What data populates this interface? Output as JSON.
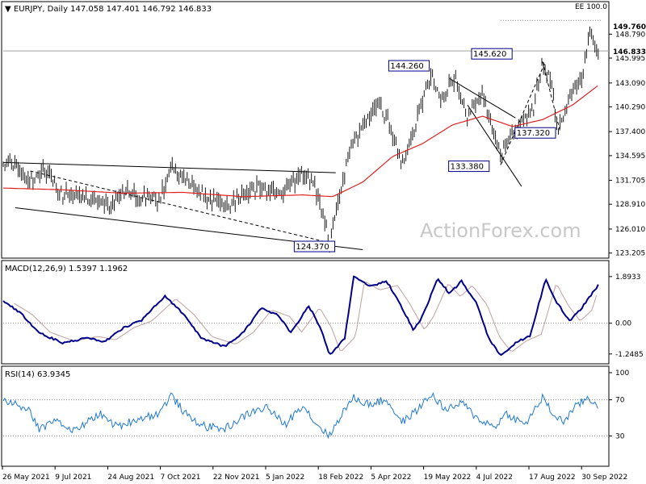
{
  "chart_data": [
    {
      "type": "candlestick",
      "header": "▼ EURJPY, Daily 147.058 147.401 146.792 146.833",
      "watermark": "ActionForex.com",
      "yticks": [
        123.205,
        126.01,
        128.91,
        131.705,
        134.595,
        137.4,
        140.29,
        143.09,
        145.995,
        148.79
      ],
      "ylim": [
        122.8,
        150.9
      ],
      "price_labels": {
        "last": "146.833",
        "high": "149.760",
        "ee": "EE 100.0"
      },
      "ma_color": "#e02020",
      "price_color": "#1a1a1a",
      "annotations": [
        "124.370",
        "144.260",
        "145.620",
        "137.320",
        "133.380"
      ],
      "waypoints": [
        {
          "x": 0.0,
          "y": 133.9
        },
        {
          "x": 0.02,
          "y": 133.6
        },
        {
          "x": 0.045,
          "y": 131.8
        },
        {
          "x": 0.07,
          "y": 132.8
        },
        {
          "x": 0.1,
          "y": 130.0
        },
        {
          "x": 0.13,
          "y": 129.8
        },
        {
          "x": 0.16,
          "y": 129.0
        },
        {
          "x": 0.18,
          "y": 128.6
        },
        {
          "x": 0.2,
          "y": 130.3
        },
        {
          "x": 0.23,
          "y": 129.8
        },
        {
          "x": 0.26,
          "y": 129.5
        },
        {
          "x": 0.28,
          "y": 133.2
        },
        {
          "x": 0.31,
          "y": 131.6
        },
        {
          "x": 0.34,
          "y": 129.6
        },
        {
          "x": 0.37,
          "y": 128.8
        },
        {
          "x": 0.4,
          "y": 129.7
        },
        {
          "x": 0.43,
          "y": 131.0
        },
        {
          "x": 0.46,
          "y": 130.0
        },
        {
          "x": 0.48,
          "y": 131.2
        },
        {
          "x": 0.5,
          "y": 132.6
        },
        {
          "x": 0.52,
          "y": 130.8
        },
        {
          "x": 0.535,
          "y": 127.8
        },
        {
          "x": 0.545,
          "y": 124.4
        },
        {
          "x": 0.56,
          "y": 129.5
        },
        {
          "x": 0.58,
          "y": 135.5
        },
        {
          "x": 0.6,
          "y": 137.8
        },
        {
          "x": 0.625,
          "y": 140.8
        },
        {
          "x": 0.645,
          "y": 138.2
        },
        {
          "x": 0.665,
          "y": 133.5
        },
        {
          "x": 0.685,
          "y": 137.5
        },
        {
          "x": 0.715,
          "y": 144.2
        },
        {
          "x": 0.73,
          "y": 140.8
        },
        {
          "x": 0.755,
          "y": 143.8
        },
        {
          "x": 0.775,
          "y": 139.0
        },
        {
          "x": 0.8,
          "y": 142.0
        },
        {
          "x": 0.83,
          "y": 134.5
        },
        {
          "x": 0.855,
          "y": 137.8
        },
        {
          "x": 0.885,
          "y": 140.0
        },
        {
          "x": 0.9,
          "y": 145.6
        },
        {
          "x": 0.915,
          "y": 143.0
        },
        {
          "x": 0.925,
          "y": 137.3
        },
        {
          "x": 0.945,
          "y": 141.6
        },
        {
          "x": 0.965,
          "y": 143.5
        },
        {
          "x": 0.98,
          "y": 149.0
        },
        {
          "x": 0.993,
          "y": 146.8
        }
      ],
      "ma_waypoints": [
        {
          "x": 0.0,
          "y": 130.8
        },
        {
          "x": 0.1,
          "y": 130.6
        },
        {
          "x": 0.2,
          "y": 130.2
        },
        {
          "x": 0.3,
          "y": 130.3
        },
        {
          "x": 0.4,
          "y": 129.8
        },
        {
          "x": 0.5,
          "y": 130.0
        },
        {
          "x": 0.55,
          "y": 129.8
        },
        {
          "x": 0.6,
          "y": 131.5
        },
        {
          "x": 0.65,
          "y": 134.5
        },
        {
          "x": 0.7,
          "y": 136.0
        },
        {
          "x": 0.75,
          "y": 138.2
        },
        {
          "x": 0.8,
          "y": 139.2
        },
        {
          "x": 0.85,
          "y": 138.0
        },
        {
          "x": 0.9,
          "y": 138.8
        },
        {
          "x": 0.95,
          "y": 140.5
        },
        {
          "x": 0.993,
          "y": 142.8
        }
      ]
    },
    {
      "type": "line",
      "title": "MACD(12,26,9) 1.5397 1.1962",
      "yticks": [
        1.8933,
        0.0,
        -1.2485
      ],
      "ylim": [
        -1.55,
        2.15
      ],
      "macd_color": "#00008b",
      "signal_color": "#c0a0a0",
      "waypoints": [
        {
          "x": 0.0,
          "y": 0.9
        },
        {
          "x": 0.03,
          "y": 0.4
        },
        {
          "x": 0.06,
          "y": -0.4
        },
        {
          "x": 0.1,
          "y": -0.8
        },
        {
          "x": 0.14,
          "y": -0.6
        },
        {
          "x": 0.17,
          "y": -0.75
        },
        {
          "x": 0.2,
          "y": -0.2
        },
        {
          "x": 0.23,
          "y": 0.1
        },
        {
          "x": 0.27,
          "y": 1.1
        },
        {
          "x": 0.3,
          "y": 0.4
        },
        {
          "x": 0.33,
          "y": -0.6
        },
        {
          "x": 0.37,
          "y": -0.95
        },
        {
          "x": 0.4,
          "y": -0.4
        },
        {
          "x": 0.43,
          "y": 0.6
        },
        {
          "x": 0.46,
          "y": 0.3
        },
        {
          "x": 0.48,
          "y": -0.4
        },
        {
          "x": 0.51,
          "y": 0.7
        },
        {
          "x": 0.53,
          "y": -0.2
        },
        {
          "x": 0.545,
          "y": -1.3
        },
        {
          "x": 0.57,
          "y": -0.6
        },
        {
          "x": 0.585,
          "y": 1.9
        },
        {
          "x": 0.61,
          "y": 1.5
        },
        {
          "x": 0.64,
          "y": 1.7
        },
        {
          "x": 0.66,
          "y": 0.9
        },
        {
          "x": 0.685,
          "y": -0.3
        },
        {
          "x": 0.7,
          "y": 0.3
        },
        {
          "x": 0.725,
          "y": 1.8
        },
        {
          "x": 0.745,
          "y": 1.2
        },
        {
          "x": 0.765,
          "y": 1.7
        },
        {
          "x": 0.79,
          "y": 0.8
        },
        {
          "x": 0.81,
          "y": -0.6
        },
        {
          "x": 0.83,
          "y": -1.3
        },
        {
          "x": 0.855,
          "y": -0.8
        },
        {
          "x": 0.88,
          "y": -0.5
        },
        {
          "x": 0.905,
          "y": 1.8
        },
        {
          "x": 0.925,
          "y": 0.8
        },
        {
          "x": 0.945,
          "y": 0.1
        },
        {
          "x": 0.965,
          "y": 0.6
        },
        {
          "x": 0.993,
          "y": 1.54
        }
      ]
    },
    {
      "type": "line",
      "title": "RSI(14) 63.9345",
      "yticks": [
        100,
        70,
        30
      ],
      "ylim": [
        0,
        100
      ],
      "rsi_color": "#1e78d2",
      "waypoints": [
        {
          "x": 0.0,
          "y": 70
        },
        {
          "x": 0.04,
          "y": 60
        },
        {
          "x": 0.06,
          "y": 38
        },
        {
          "x": 0.09,
          "y": 48
        },
        {
          "x": 0.12,
          "y": 35
        },
        {
          "x": 0.16,
          "y": 55
        },
        {
          "x": 0.19,
          "y": 40
        },
        {
          "x": 0.22,
          "y": 48
        },
        {
          "x": 0.26,
          "y": 55
        },
        {
          "x": 0.28,
          "y": 75
        },
        {
          "x": 0.31,
          "y": 50
        },
        {
          "x": 0.34,
          "y": 40
        },
        {
          "x": 0.37,
          "y": 38
        },
        {
          "x": 0.41,
          "y": 55
        },
        {
          "x": 0.44,
          "y": 62
        },
        {
          "x": 0.47,
          "y": 42
        },
        {
          "x": 0.5,
          "y": 65
        },
        {
          "x": 0.52,
          "y": 45
        },
        {
          "x": 0.545,
          "y": 30
        },
        {
          "x": 0.565,
          "y": 55
        },
        {
          "x": 0.585,
          "y": 72
        },
        {
          "x": 0.61,
          "y": 65
        },
        {
          "x": 0.64,
          "y": 70
        },
        {
          "x": 0.665,
          "y": 45
        },
        {
          "x": 0.685,
          "y": 55
        },
        {
          "x": 0.715,
          "y": 76
        },
        {
          "x": 0.74,
          "y": 58
        },
        {
          "x": 0.765,
          "y": 67
        },
        {
          "x": 0.79,
          "y": 50
        },
        {
          "x": 0.82,
          "y": 40
        },
        {
          "x": 0.84,
          "y": 55
        },
        {
          "x": 0.87,
          "y": 42
        },
        {
          "x": 0.9,
          "y": 72
        },
        {
          "x": 0.92,
          "y": 52
        },
        {
          "x": 0.935,
          "y": 46
        },
        {
          "x": 0.955,
          "y": 62
        },
        {
          "x": 0.975,
          "y": 72
        },
        {
          "x": 0.993,
          "y": 63.9
        }
      ]
    }
  ],
  "x_axis_labels": [
    "26 May 2021",
    "9 Jul 2021",
    "24 Aug 2021",
    "7 Oct 2021",
    "22 Nov 2021",
    "5 Jan 2022",
    "18 Feb 2022",
    "5 Apr 2022",
    "19 May 2022",
    "4 Jul 2022",
    "17 Aug 2022",
    "30 Sep 2022"
  ]
}
